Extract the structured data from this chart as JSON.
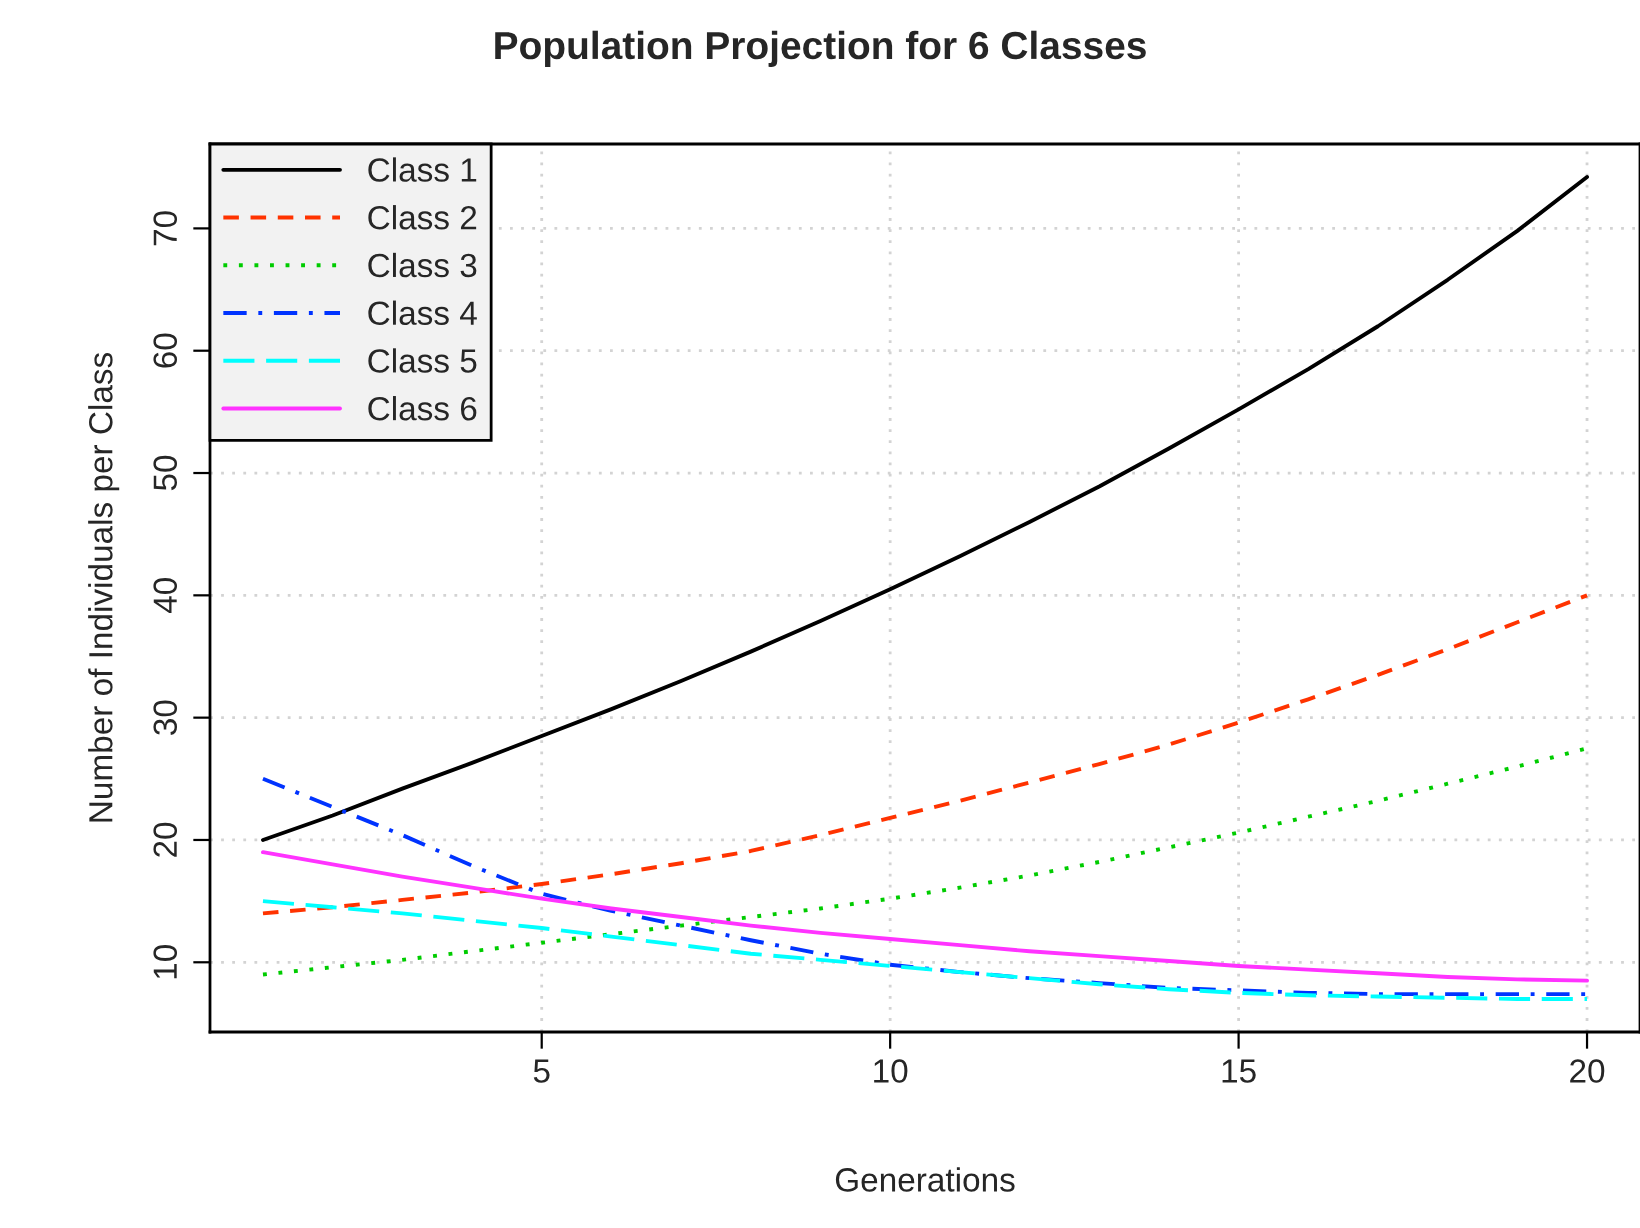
{
  "chart_data": {
    "type": "line",
    "title": "Population Projection for 6 Classes",
    "xlabel": "Generations",
    "ylabel": "Number of Individuals per Class",
    "x": [
      1,
      2,
      3,
      4,
      5,
      6,
      7,
      8,
      9,
      10,
      11,
      12,
      13,
      14,
      15,
      16,
      17,
      18,
      19,
      20
    ],
    "series": [
      {
        "name": "Class 1",
        "color": "#000000",
        "line_style": "solid",
        "values": [
          20,
          22,
          24.2,
          26.3,
          28.5,
          30.7,
          33.0,
          35.4,
          37.9,
          40.5,
          43.2,
          46.0,
          48.9,
          52.0,
          55.2,
          58.5,
          62.0,
          65.8,
          69.8,
          74.2
        ]
      },
      {
        "name": "Class 2",
        "color": "#ff3300",
        "line_style": "dashed",
        "values": [
          14,
          14.5,
          15.1,
          15.7,
          16.4,
          17.2,
          18.1,
          19.1,
          20.4,
          21.8,
          23.2,
          24.7,
          26.2,
          27.8,
          29.6,
          31.5,
          33.5,
          35.6,
          37.8,
          40
        ]
      },
      {
        "name": "Class 3",
        "color": "#00cc00",
        "line_style": "dotted",
        "values": [
          9,
          9.6,
          10.2,
          10.9,
          11.6,
          12.3,
          13.0,
          13.7,
          14.4,
          15.2,
          16.1,
          17.1,
          18.2,
          19.4,
          20.6,
          21.9,
          23.2,
          24.6,
          26.0,
          27.5
        ]
      },
      {
        "name": "Class 4",
        "color": "#0033ff",
        "line_style": "dashdot",
        "values": [
          25,
          22.7,
          20.4,
          17.9,
          15.6,
          14.2,
          13.0,
          11.8,
          10.7,
          9.8,
          9.2,
          8.7,
          8.3,
          7.9,
          7.7,
          7.5,
          7.4,
          7.4,
          7.4,
          7.4
        ]
      },
      {
        "name": "Class 5",
        "color": "#00ffff",
        "line_style": "longdash",
        "values": [
          15,
          14.5,
          14.0,
          13.4,
          12.8,
          12.1,
          11.4,
          10.7,
          10.2,
          9.7,
          9.2,
          8.7,
          8.2,
          7.8,
          7.5,
          7.3,
          7.2,
          7.1,
          7.0,
          7.0
        ]
      },
      {
        "name": "Class 6",
        "color": "#ff33ff",
        "line_style": "solid",
        "values": [
          19,
          18.0,
          17.0,
          16.1,
          15.2,
          14.4,
          13.7,
          13.0,
          12.4,
          11.9,
          11.4,
          10.9,
          10.5,
          10.1,
          9.7,
          9.4,
          9.1,
          8.8,
          8.6,
          8.5
        ]
      }
    ],
    "xlim": [
      0.24,
      20.76
    ],
    "ylim": [
      4.3,
      76.9
    ],
    "xticks": [
      5,
      10,
      15,
      20
    ],
    "yticks": [
      10,
      20,
      30,
      40,
      50,
      60,
      70
    ],
    "grid": true,
    "legend": "top left"
  }
}
